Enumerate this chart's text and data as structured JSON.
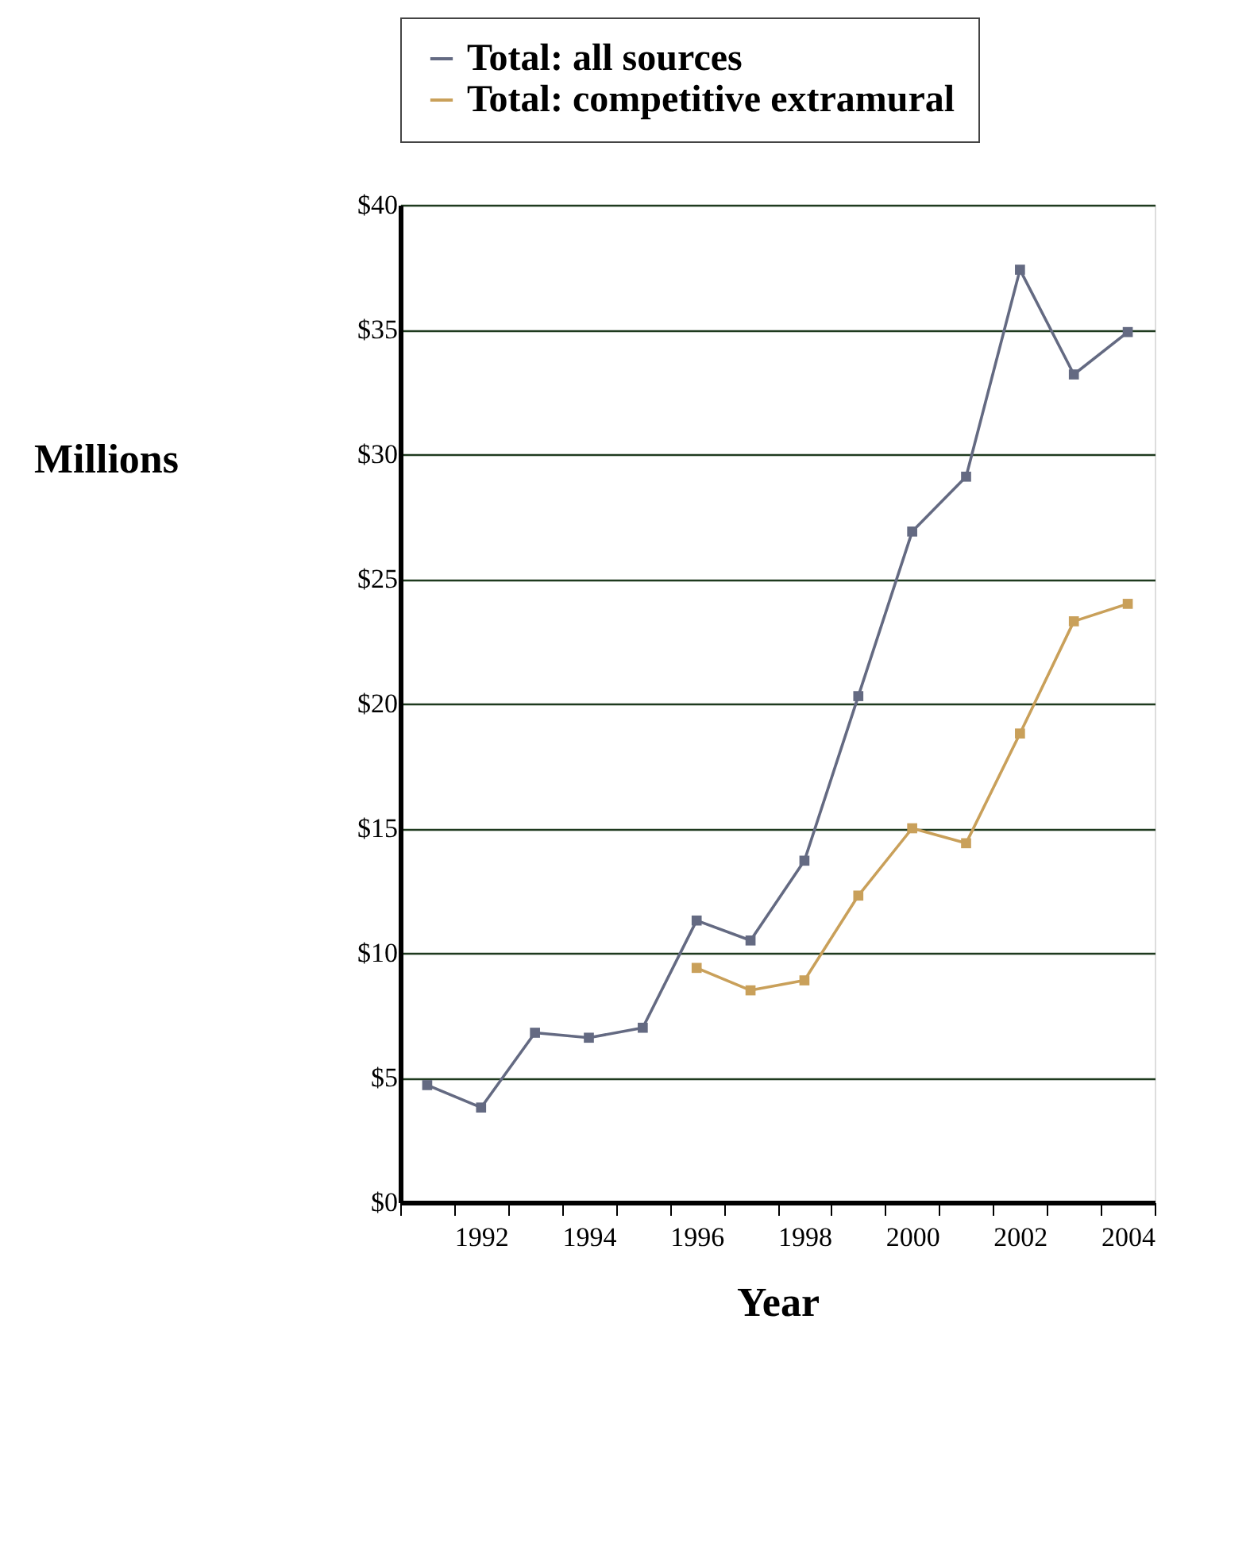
{
  "chart_data": {
    "type": "line",
    "xlabel": "Year",
    "ylabel": "Millions",
    "categories": [
      null,
      "1992",
      null,
      "1994",
      null,
      "1996",
      null,
      "1998",
      null,
      "2000",
      null,
      "2002",
      null,
      "2004"
    ],
    "series": [
      {
        "name": "Total: all sources",
        "color": "#646a82",
        "values": [
          4.7,
          3.8,
          6.8,
          6.6,
          7.0,
          11.3,
          10.5,
          13.7,
          20.3,
          26.9,
          29.1,
          37.4,
          33.2,
          34.9
        ]
      },
      {
        "name": "Total: competitive extramural",
        "color": "#c9a05a",
        "values": [
          null,
          null,
          null,
          null,
          null,
          9.4,
          8.5,
          8.9,
          12.3,
          15.0,
          14.4,
          18.8,
          23.3,
          24.0
        ]
      }
    ],
    "ylim": [
      0,
      40
    ],
    "yticks": [
      {
        "value": 0,
        "label": "$0"
      },
      {
        "value": 5,
        "label": "$5"
      },
      {
        "value": 10,
        "label": "$10"
      },
      {
        "value": 15,
        "label": "$15"
      },
      {
        "value": 20,
        "label": "$20"
      },
      {
        "value": 25,
        "label": "$25"
      },
      {
        "value": 30,
        "label": "$30"
      },
      {
        "value": 35,
        "label": "$35"
      },
      {
        "value": 40,
        "label": "$40"
      }
    ],
    "grid": "y",
    "legend": "top",
    "marker": "square",
    "line_style": "solid"
  }
}
